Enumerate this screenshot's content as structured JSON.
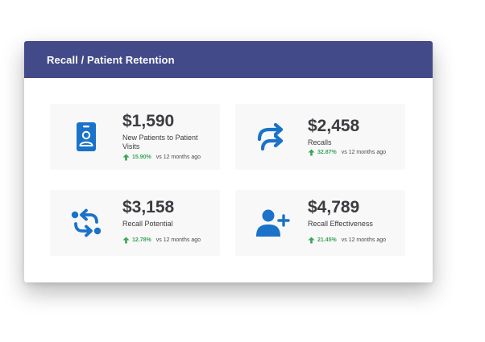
{
  "panel": {
    "title": "Recall / Patient Retention"
  },
  "colors": {
    "header": "#424a8a",
    "icon": "#1a72c9",
    "positive": "#3ea55b"
  },
  "stats": [
    {
      "icon": "id-badge-icon",
      "value": "$1,590",
      "label": "New Patients to Patient Visits",
      "change": "15.90%",
      "comparison": "vs 12 months ago"
    },
    {
      "icon": "redo-arrows-icon",
      "value": "$2,458",
      "label": "Recalls",
      "change": "32.87%",
      "comparison": "vs 12 months ago"
    },
    {
      "icon": "swap-arrows-icon",
      "value": "$3,158",
      "label": "Recall Potential",
      "change": "12.78%",
      "comparison": "vs 12 months ago"
    },
    {
      "icon": "add-user-icon",
      "value": "$4,789",
      "label": "Recall Effectiveness",
      "change": "21.45%",
      "comparison": "vs 12 months ago"
    }
  ]
}
